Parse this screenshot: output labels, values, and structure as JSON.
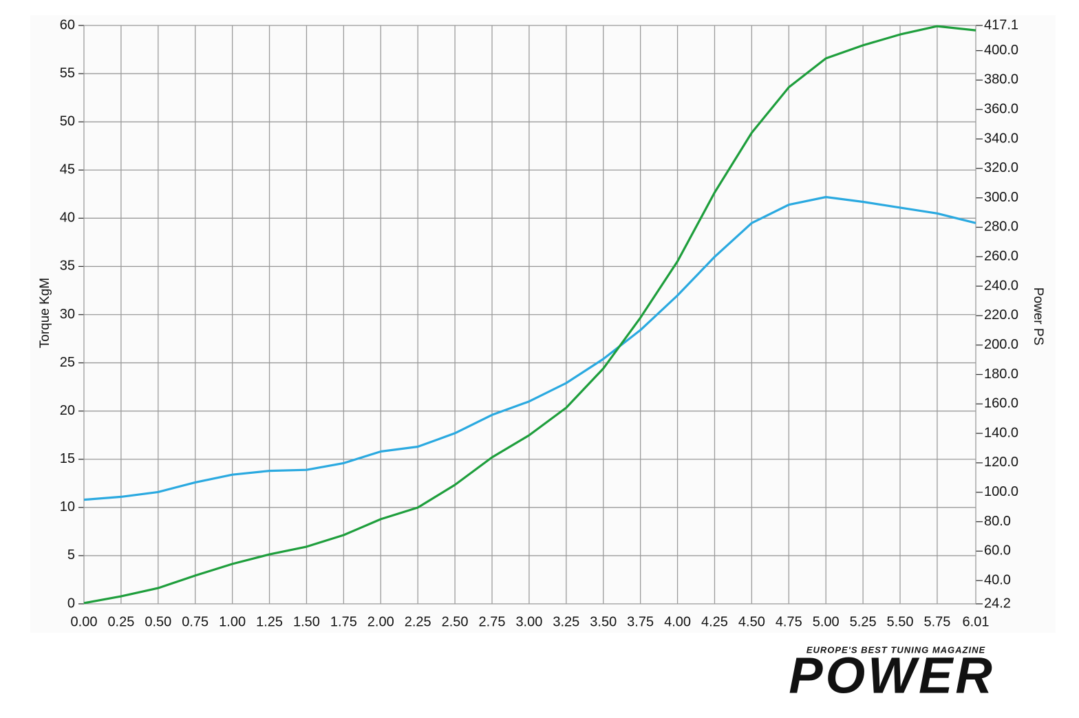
{
  "chart_data": {
    "type": "line",
    "y_label": "Torque KgM",
    "y2_label": "Power PS",
    "x": [
      0,
      0.25,
      0.5,
      0.75,
      1.0,
      1.25,
      1.5,
      1.75,
      2.0,
      2.25,
      2.5,
      2.75,
      3.0,
      3.25,
      3.5,
      3.75,
      4.0,
      4.25,
      4.5,
      4.75,
      5.0,
      5.25,
      5.5,
      5.75,
      6.01
    ],
    "xlim": [
      0,
      6.01
    ],
    "xticks": [
      {
        "value": 0,
        "label": "0.00"
      },
      0.25,
      {
        "value": 0.5,
        "label": "0.50"
      },
      0.75,
      {
        "value": 1,
        "label": "1.00"
      },
      1.25,
      {
        "value": 1.5,
        "label": "1.50"
      },
      1.75,
      {
        "value": 2,
        "label": "2.00"
      },
      2.25,
      {
        "value": 2.5,
        "label": "2.50"
      },
      2.75,
      {
        "value": 3,
        "label": "3.00"
      },
      3.25,
      {
        "value": 3.5,
        "label": "3.50"
      },
      3.75,
      {
        "value": 4,
        "label": "4.00"
      },
      4.25,
      {
        "value": 4.5,
        "label": "4.50"
      },
      4.75,
      {
        "value": 5,
        "label": "5.00"
      },
      5.25,
      {
        "value": 5.5,
        "label": "5.50"
      },
      5.75,
      6.01
    ],
    "ylim": [
      0,
      60
    ],
    "yticks": [
      0,
      5,
      10,
      15,
      20,
      25,
      30,
      35,
      40,
      45,
      50,
      55,
      60
    ],
    "y2lim": [
      24.2,
      417.1
    ],
    "y2ticks": [
      24.2,
      {
        "value": 40,
        "label": "40.0"
      },
      {
        "value": 60,
        "label": "60.0"
      },
      {
        "value": 80,
        "label": "80.0"
      },
      {
        "value": 100,
        "label": "100.0"
      },
      {
        "value": 120,
        "label": "120.0"
      },
      {
        "value": 140,
        "label": "140.0"
      },
      {
        "value": 160,
        "label": "160.0"
      },
      {
        "value": 180,
        "label": "180.0"
      },
      {
        "value": 200,
        "label": "200.0"
      },
      {
        "value": 220,
        "label": "220.0"
      },
      {
        "value": 240,
        "label": "240.0"
      },
      {
        "value": 260,
        "label": "260.0"
      },
      {
        "value": 280,
        "label": "280.0"
      },
      {
        "value": 300,
        "label": "300.0"
      },
      {
        "value": 320,
        "label": "320.0"
      },
      {
        "value": 340,
        "label": "340.0"
      },
      {
        "value": 360,
        "label": "360.0"
      },
      {
        "value": 380,
        "label": "380.0"
      },
      {
        "value": 400,
        "label": "400.0"
      },
      417.1
    ],
    "grid": true,
    "series": [
      {
        "color": "#2aa9e0",
        "values": [
          10.8,
          11.1,
          11.6,
          12.6,
          13.4,
          13.8,
          13.9,
          14.6,
          15.8,
          16.3,
          17.7,
          19.6,
          21.0,
          22.9,
          25.4,
          28.4,
          32.0,
          36.0,
          39.5,
          41.4,
          42.2,
          41.7,
          41.1,
          40.5,
          39.5
        ]
      },
      {
        "color": "#1e9e3c",
        "axis": "y2",
        "values": [
          24.7,
          29.3,
          34.9,
          43.4,
          51.3,
          57.8,
          63.0,
          70.9,
          81.7,
          89.6,
          105.0,
          123.7,
          138.7,
          157.4,
          184.0,
          218.6,
          256.9,
          303.6,
          344.2,
          375.1,
          394.7,
          403.6,
          411.0,
          416.6,
          413.8
        ]
      }
    ]
  },
  "logo": {
    "tagline": "EUROPE'S BEST TUNING MAGAZINE",
    "name": "POWER"
  }
}
